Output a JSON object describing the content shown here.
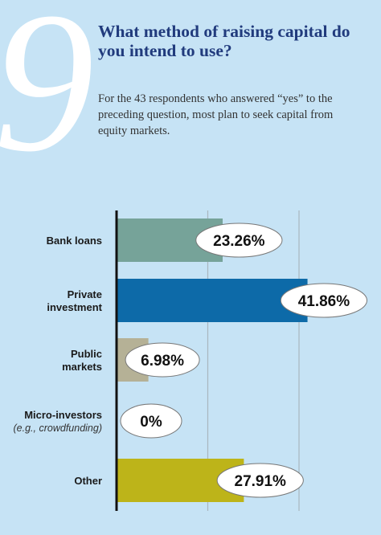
{
  "header": {
    "number": "9",
    "title": "What method of raising capital do you intend to use?",
    "subtitle": "For the 43 respondents who answered “yes” to the preceding question, most plan to seek capital from equity markets."
  },
  "chart_data": {
    "type": "bar",
    "orientation": "horizontal",
    "categories": [
      {
        "name": "Bank loans",
        "lines": [
          "Bank loans"
        ],
        "note": ""
      },
      {
        "name": "Private investment",
        "lines": [
          "Private",
          "investment"
        ],
        "note": ""
      },
      {
        "name": "Public markets",
        "lines": [
          "Public",
          "markets"
        ],
        "note": ""
      },
      {
        "name": "Micro-investors",
        "lines": [
          "Micro-investors"
        ],
        "note": "(e.g., crowdfunding)"
      },
      {
        "name": "Other",
        "lines": [
          "Other"
        ],
        "note": ""
      }
    ],
    "values": [
      23.26,
      41.86,
      6.98,
      0,
      27.91
    ],
    "value_labels": [
      "23.26%",
      "41.86%",
      "6.98%",
      "0%",
      "27.91%"
    ],
    "colors": [
      "#76a399",
      "#0d6aa8",
      "#b5b196",
      "#c6e3f5",
      "#bdb419"
    ],
    "xlim": [
      0,
      45
    ],
    "gridlines": [
      20,
      40
    ],
    "grid": true,
    "legend": "none"
  }
}
